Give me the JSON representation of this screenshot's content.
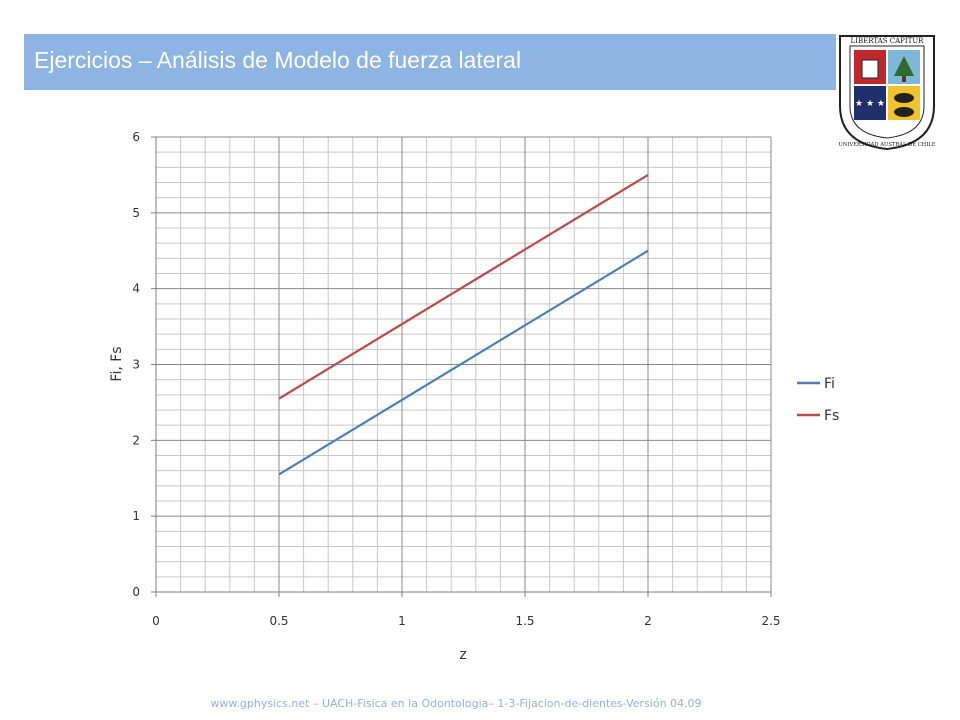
{
  "header": {
    "title": "Ejercicios – Análisis de Modelo de fuerza lateral",
    "accent_color": "#8EB4E3"
  },
  "logo": {
    "motto": "LIBERTAS CAPITUR",
    "ring_text": "UNIVERSIDAD AUSTRAL DE CHILE",
    "icon": "university-crest"
  },
  "chart_data": {
    "type": "line",
    "xlabel": "z",
    "ylabel": "Fi, Fs",
    "xlim": [
      0,
      2.5
    ],
    "ylim": [
      0,
      6
    ],
    "x_ticks": [
      "0",
      "0.5",
      "1",
      "1.5",
      "2",
      "2.5"
    ],
    "y_ticks": [
      "0",
      "1",
      "2",
      "3",
      "4",
      "5",
      "6"
    ],
    "grid": true,
    "legend_position": "right",
    "series": [
      {
        "name": "Fi",
        "color": "#4A7EBB",
        "points": [
          [
            0.5,
            1.55
          ],
          [
            2.0,
            4.5
          ]
        ]
      },
      {
        "name": "Fs",
        "color": "#BE4B48",
        "points": [
          [
            0.5,
            2.55
          ],
          [
            2.0,
            5.5
          ]
        ]
      }
    ]
  },
  "footer": {
    "text": "www.gphysics.net – UACH-Fisica en la Odontologia– 1-3-Fijacion-de-dientes-Versión 04.09"
  }
}
